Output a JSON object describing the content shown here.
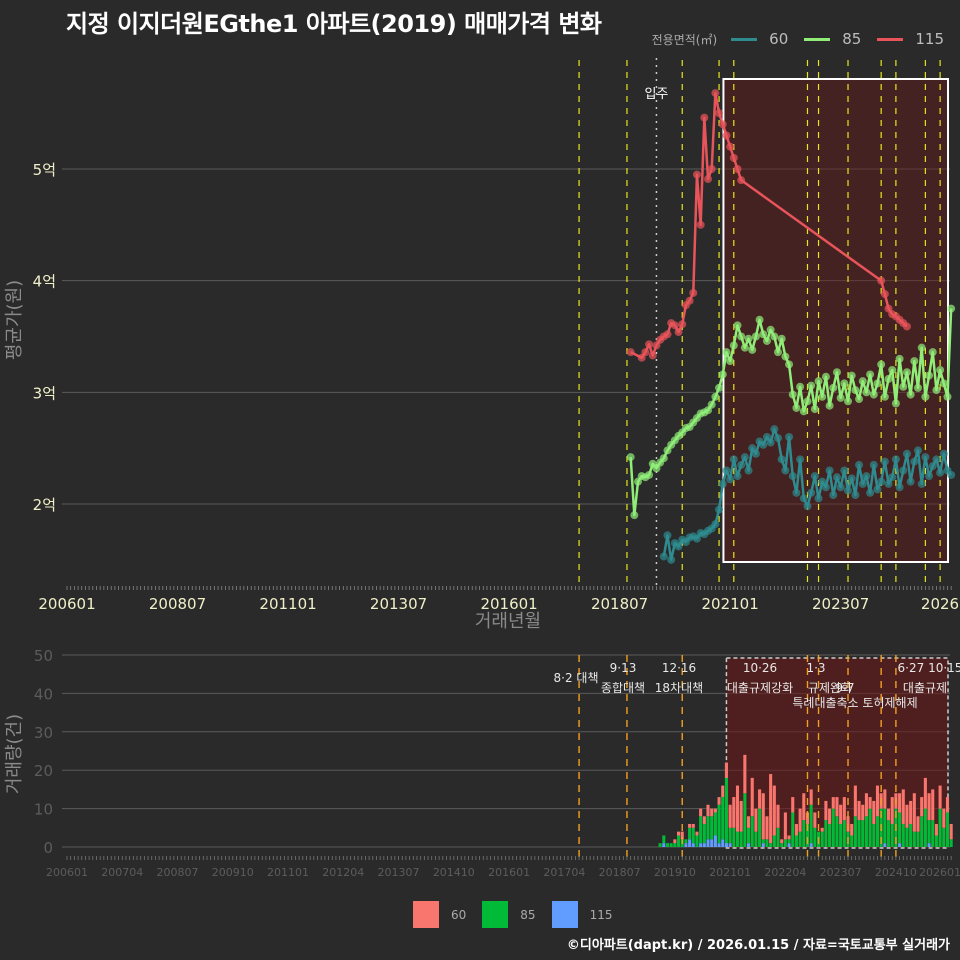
{
  "title": "지정 이지더원EGthe1 아파트(2019) 매매가격 변화",
  "legend_top": {
    "title": "전용면적(㎡)",
    "items": [
      {
        "label": "60",
        "color": "#2e8b8f"
      },
      {
        "label": "85",
        "color": "#90ee78"
      },
      {
        "label": "115",
        "color": "#e8545a"
      }
    ]
  },
  "legend_bottom": {
    "items": [
      {
        "label": "60",
        "color": "#f8766d"
      },
      {
        "label": "85",
        "color": "#00ba38"
      },
      {
        "label": "115",
        "color": "#619cff"
      }
    ]
  },
  "credit": "©디아파트(dapt.kr) / 2026.01.15 / 자료=국토교통부 실거래가",
  "chart_data": [
    {
      "type": "line",
      "title": "지정 이지더원EGthe1 아파트(2019) 매매가격 변화",
      "xlabel": "거래년월",
      "ylabel": "평균가(원)",
      "x_ticks": [
        "200601",
        "200807",
        "201101",
        "201307",
        "201601",
        "201807",
        "202101",
        "202307",
        "2026"
      ],
      "y_ticks": [
        "2억",
        "3억",
        "4억",
        "5억"
      ],
      "y_tick_values": [
        20000,
        30000,
        40000,
        50000
      ],
      "ylim": [
        13000,
        59000
      ],
      "unit": "만원",
      "annotations": [
        {
          "label": "입주",
          "x": "201905"
        }
      ],
      "highlight_box": {
        "from": "202012",
        "to": "202601",
        "ymin": 14800,
        "ymax": 57800
      },
      "policy_lines": [
        "201708",
        "201809",
        "201912",
        "202010",
        "202102",
        "202210",
        "202301",
        "202309",
        "202406",
        "202410",
        "202506",
        "202510"
      ],
      "series": [
        {
          "name": "60",
          "color": "#2e8b8f",
          "x": [
            "201907",
            "201908",
            "201909",
            "201910",
            "201911",
            "201912",
            "202001",
            "202002",
            "202003",
            "202004",
            "202005",
            "202006",
            "202007",
            "202008",
            "202009",
            "202010",
            "202011",
            "202012",
            "202101",
            "202102",
            "202103",
            "202104",
            "202105",
            "202106",
            "202107",
            "202108",
            "202109",
            "202110",
            "202111",
            "202112",
            "202201",
            "202202",
            "202203",
            "202204",
            "202205",
            "202206",
            "202207",
            "202208",
            "202209",
            "202210",
            "202211",
            "202212",
            "202301",
            "202302",
            "202303",
            "202304",
            "202305",
            "202306",
            "202307",
            "202308",
            "202309",
            "202310",
            "202311",
            "202312",
            "202401",
            "202402",
            "202403",
            "202404",
            "202405",
            "202406",
            "202407",
            "202408",
            "202409",
            "202410",
            "202411",
            "202412",
            "202501",
            "202502",
            "202503",
            "202504",
            "202505",
            "202506",
            "202507",
            "202508",
            "202509",
            "202510",
            "202511",
            "202512",
            "202601"
          ],
          "values": [
            15300,
            17200,
            15000,
            16500,
            16200,
            16800,
            16600,
            17000,
            17100,
            16900,
            17400,
            17300,
            17600,
            17800,
            18200,
            19500,
            21800,
            23000,
            22200,
            24000,
            22500,
            23500,
            24200,
            23000,
            25000,
            24500,
            25600,
            25300,
            26000,
            25500,
            26700,
            25900,
            24000,
            23000,
            26000,
            22500,
            21000,
            24000,
            20500,
            19800,
            21000,
            22500,
            20500,
            22000,
            21500,
            23000,
            20800,
            22400,
            21500,
            23000,
            21200,
            22300,
            20800,
            23500,
            21800,
            22500,
            21000,
            23500,
            21300,
            22000,
            23800,
            21800,
            22400,
            24000,
            21500,
            23000,
            24500,
            22000,
            23800,
            24800,
            21800,
            24200,
            22500,
            23400,
            24000,
            22800,
            24500,
            23000,
            22600
          ]
        },
        {
          "name": "85",
          "color": "#90ee78",
          "x": [
            "201810",
            "201811",
            "201812",
            "201901",
            "201902",
            "201903",
            "201904",
            "201905",
            "201906",
            "201907",
            "201908",
            "201909",
            "201910",
            "201911",
            "201912",
            "202001",
            "202002",
            "202003",
            "202004",
            "202005",
            "202006",
            "202007",
            "202008",
            "202009",
            "202010",
            "202011",
            "202012",
            "202101",
            "202102",
            "202103",
            "202104",
            "202105",
            "202106",
            "202107",
            "202108",
            "202109",
            "202110",
            "202111",
            "202112",
            "202201",
            "202202",
            "202203",
            "202204",
            "202205",
            "202206",
            "202207",
            "202208",
            "202209",
            "202210",
            "202211",
            "202212",
            "202301",
            "202302",
            "202303",
            "202304",
            "202305",
            "202306",
            "202307",
            "202308",
            "202309",
            "202310",
            "202311",
            "202312",
            "202401",
            "202402",
            "202403",
            "202404",
            "202405",
            "202406",
            "202407",
            "202408",
            "202409",
            "202410",
            "202411",
            "202412",
            "202501",
            "202502",
            "202503",
            "202504",
            "202505",
            "202506",
            "202507",
            "202508",
            "202509",
            "202510",
            "202511",
            "202512",
            "202601"
          ],
          "values": [
            24200,
            19000,
            22000,
            22500,
            22400,
            22600,
            23600,
            23200,
            23700,
            24100,
            24800,
            25300,
            25700,
            26100,
            26400,
            26800,
            26900,
            27300,
            27700,
            28100,
            28200,
            28400,
            28900,
            29600,
            30400,
            31600,
            33600,
            32800,
            34200,
            36000,
            35000,
            34000,
            34800,
            33800,
            35000,
            36500,
            35200,
            34600,
            35600,
            35000,
            33600,
            34800,
            33200,
            32500,
            29800,
            28600,
            30500,
            28300,
            29200,
            30600,
            28500,
            31000,
            29600,
            31400,
            28800,
            30400,
            31800,
            29500,
            30800,
            29200,
            31500,
            30200,
            29400,
            31000,
            30000,
            31600,
            29800,
            30800,
            32500,
            29600,
            31200,
            32000,
            29000,
            33000,
            30500,
            31800,
            29800,
            32800,
            30400,
            34000,
            29600,
            31500,
            33600,
            30200,
            32000,
            30800,
            29600,
            37500
          ]
        },
        {
          "name": "115",
          "color": "#e8545a",
          "x": [
            "201810",
            "201901",
            "201902",
            "201903",
            "201904",
            "201905",
            "201906",
            "201907",
            "201908",
            "201909",
            "201910",
            "201911",
            "201912",
            "202001",
            "202002",
            "202003",
            "202004",
            "202005",
            "202006",
            "202007",
            "202008",
            "202009",
            "202010",
            "202011",
            "202012",
            "202101",
            "202102",
            "202103",
            "202104",
            "202406",
            "202407",
            "202408",
            "202409",
            "202410",
            "202411",
            "202412",
            "202501"
          ],
          "values": [
            33600,
            33100,
            33600,
            34300,
            33300,
            34200,
            34700,
            35000,
            35200,
            36200,
            36000,
            35400,
            36100,
            37800,
            38200,
            38900,
            49500,
            45000,
            54600,
            49100,
            50000,
            56800,
            55000,
            54000,
            53000,
            52000,
            51000,
            50000,
            49000,
            40000,
            38800,
            37500,
            37000,
            36800,
            36500,
            36200,
            35900
          ]
        }
      ]
    },
    {
      "type": "bar",
      "stacked": true,
      "xlabel": "",
      "ylabel": "거래량(건)",
      "ylim": [
        0,
        50
      ],
      "y_ticks": [
        0,
        10,
        20,
        30,
        40,
        50
      ],
      "x_ticks": [
        "200601",
        "200704",
        "200807",
        "200910",
        "201101",
        "201204",
        "201307",
        "201410",
        "201601",
        "201704",
        "201807",
        "201910",
        "202101",
        "202204",
        "202307",
        "202410",
        "202601"
      ],
      "policy_events": [
        {
          "date": "201708",
          "label": "8·2 대책"
        },
        {
          "date": "201809",
          "label": "9·13 종합대책"
        },
        {
          "date": "201912",
          "label": "12·16 18차대책"
        },
        {
          "date": "202210",
          "label": "10·26 대출규제강화"
        },
        {
          "date": "202301",
          "label": "1·3 규제완화"
        },
        {
          "date": "202309",
          "label": "9·7 특례대출축소"
        },
        {
          "date": "202406",
          "label": "6·27 대출규제"
        },
        {
          "date": "202410",
          "label": "10·15 토허제해제"
        }
      ],
      "highlight_box": {
        "from": "202012",
        "to": "202601"
      },
      "series_colors": {
        "60": "#f8766d",
        "85": "#00ba38",
        "115": "#619cff"
      },
      "months": [
        "201906",
        "201907",
        "201908",
        "201909",
        "201910",
        "201911",
        "201912",
        "202001",
        "202002",
        "202003",
        "202004",
        "202005",
        "202006",
        "202007",
        "202008",
        "202009",
        "202010",
        "202011",
        "202012",
        "202101",
        "202102",
        "202103",
        "202104",
        "202105",
        "202106",
        "202107",
        "202108",
        "202109",
        "202110",
        "202111",
        "202112",
        "202201",
        "202202",
        "202203",
        "202204",
        "202205",
        "202206",
        "202207",
        "202208",
        "202209",
        "202210",
        "202211",
        "202212",
        "202301",
        "202302",
        "202303",
        "202304",
        "202305",
        "202306",
        "202307",
        "202308",
        "202309",
        "202310",
        "202311",
        "202312",
        "202401",
        "202402",
        "202403",
        "202404",
        "202405",
        "202406",
        "202407",
        "202408",
        "202409",
        "202410",
        "202411",
        "202412",
        "202501",
        "202502",
        "202503",
        "202504",
        "202505",
        "202506",
        "202507",
        "202508",
        "202509",
        "202510",
        "202511",
        "202512",
        "202601"
      ],
      "series": [
        {
          "name": "60",
          "values": [
            0,
            0,
            0,
            0,
            1,
            1,
            2,
            0,
            1,
            1,
            1,
            2,
            2,
            3,
            2,
            1,
            2,
            3,
            4,
            6,
            8,
            12,
            8,
            10,
            3,
            10,
            6,
            5,
            12,
            6,
            18,
            13,
            6,
            1,
            7,
            1,
            4,
            3,
            6,
            7,
            3,
            4,
            4,
            0,
            1,
            5,
            4,
            3,
            5,
            5,
            6,
            4,
            3,
            8,
            5,
            4,
            6,
            3,
            6,
            8,
            4,
            5,
            3,
            7,
            4,
            5,
            9,
            6,
            6,
            10,
            4,
            5,
            8,
            7,
            8,
            3,
            6,
            5,
            4,
            4
          ]
        },
        {
          "name": "85",
          "values": [
            1,
            2,
            1,
            1,
            1,
            3,
            2,
            1,
            3,
            4,
            3,
            7,
            5,
            6,
            6,
            6,
            10,
            11,
            17,
            4,
            5,
            4,
            4,
            14,
            4,
            8,
            4,
            10,
            1,
            2,
            1,
            3,
            5,
            1,
            2,
            1,
            9,
            3,
            4,
            7,
            6,
            10,
            5,
            4,
            4,
            7,
            6,
            10,
            8,
            6,
            7,
            4,
            3,
            8,
            7,
            7,
            8,
            10,
            6,
            8,
            10,
            9,
            7,
            6,
            10,
            8,
            6,
            5,
            6,
            4,
            4,
            8,
            10,
            6,
            7,
            3,
            10,
            5,
            9,
            2
          ]
        },
        {
          "name": "115",
          "values": [
            0,
            1,
            0,
            0,
            0,
            0,
            0,
            1,
            2,
            1,
            0,
            1,
            1,
            2,
            2,
            3,
            1,
            2,
            1,
            1,
            0,
            0,
            0,
            0,
            1,
            0,
            0,
            0,
            1,
            0,
            0,
            0,
            0,
            0,
            0,
            1,
            0,
            0,
            0,
            0,
            0,
            1,
            0,
            0,
            0,
            0,
            0,
            0,
            0,
            0,
            0,
            0,
            0,
            0,
            0,
            0,
            0,
            0,
            0,
            0,
            0,
            1,
            0,
            0,
            0,
            1,
            0,
            0,
            0,
            0,
            0,
            0,
            0,
            1,
            0,
            0,
            0,
            0,
            0,
            0
          ]
        }
      ]
    }
  ]
}
